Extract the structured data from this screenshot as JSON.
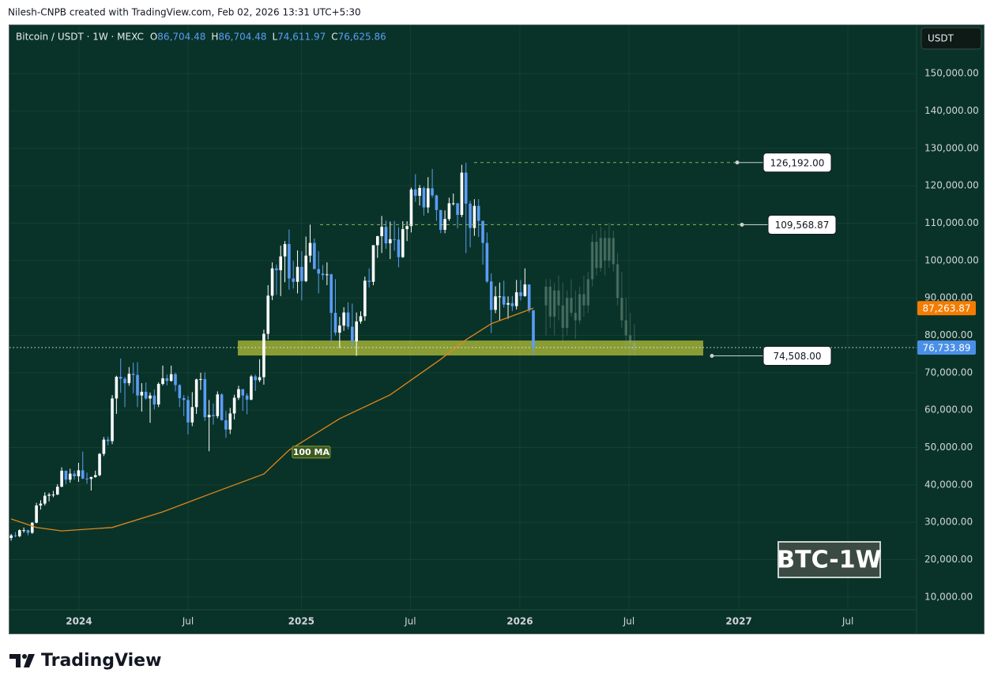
{
  "credit": "Nilesh-CNPB created with TradingView.com, Feb 02, 2026 13:31 UTC+5:30",
  "brand": "TradingView",
  "chart_data": {
    "type": "candlestick",
    "symbol": "Bitcoin / USDT · 1W · MEXC",
    "ohlc_header": [
      {
        "key": "O",
        "label": "86,704.48"
      },
      {
        "key": "H",
        "label": "86,704.48"
      },
      {
        "key": "L",
        "label": "74,611.97"
      },
      {
        "key": "C",
        "label": "76,625.86"
      }
    ],
    "currency": "USDT",
    "watermark": "BTC-1W",
    "up_color": "#ffffff",
    "down_color": "#5b9cf6",
    "candles": [
      [
        25800,
        26900,
        25100,
        26500
      ],
      [
        26500,
        27400,
        26000,
        26300
      ],
      [
        26300,
        28100,
        26000,
        27900
      ],
      [
        27900,
        28600,
        27200,
        27900
      ],
      [
        27900,
        28000,
        26500,
        27200
      ],
      [
        27200,
        30000,
        26900,
        29900
      ],
      [
        29900,
        35200,
        29700,
        34500
      ],
      [
        34500,
        35900,
        33400,
        35000
      ],
      [
        35000,
        38000,
        34500,
        37100
      ],
      [
        37100,
        37900,
        35600,
        37400
      ],
      [
        37400,
        38400,
        36700,
        37400
      ],
      [
        37400,
        40200,
        37300,
        39500
      ],
      [
        39500,
        44700,
        39400,
        43800
      ],
      [
        43800,
        43800,
        40200,
        41400
      ],
      [
        41400,
        44300,
        40600,
        43000
      ],
      [
        43000,
        43800,
        41400,
        42300
      ],
      [
        42300,
        45900,
        40800,
        43900
      ],
      [
        43900,
        48900,
        41500,
        41700
      ],
      [
        41700,
        43300,
        40300,
        41600
      ],
      [
        41600,
        42200,
        38500,
        42100
      ],
      [
        42100,
        43800,
        41900,
        42600
      ],
      [
        42600,
        48500,
        42300,
        48300
      ],
      [
        48300,
        52800,
        47700,
        52100
      ],
      [
        52100,
        52900,
        50600,
        51700
      ],
      [
        51700,
        64000,
        50900,
        63100
      ],
      [
        63100,
        69200,
        59000,
        68900
      ],
      [
        68900,
        73800,
        64600,
        68400
      ],
      [
        68400,
        68900,
        60800,
        67200
      ],
      [
        67200,
        71500,
        66500,
        69700
      ],
      [
        69700,
        72700,
        64500,
        69400
      ],
      [
        69400,
        72800,
        60800,
        63900
      ],
      [
        63900,
        67200,
        59600,
        64900
      ],
      [
        64900,
        67400,
        62800,
        63100
      ],
      [
        63100,
        64700,
        56600,
        63900
      ],
      [
        63900,
        65500,
        60200,
        61500
      ],
      [
        61500,
        67400,
        60800,
        67000
      ],
      [
        67000,
        71900,
        66600,
        68500
      ],
      [
        68500,
        69500,
        66600,
        67800
      ],
      [
        67800,
        71900,
        67600,
        69600
      ],
      [
        69600,
        70000,
        65000,
        66700
      ],
      [
        66700,
        66900,
        60800,
        63200
      ],
      [
        63200,
        64000,
        58400,
        62700
      ],
      [
        62700,
        63800,
        53500,
        56700
      ],
      [
        56700,
        64800,
        55700,
        60800
      ],
      [
        60800,
        68400,
        59000,
        68200
      ],
      [
        68200,
        70000,
        65400,
        68300
      ],
      [
        68300,
        70100,
        57100,
        58100
      ],
      [
        58100,
        62700,
        49000,
        58700
      ],
      [
        58700,
        61800,
        56100,
        58400
      ],
      [
        58400,
        65000,
        57800,
        64200
      ],
      [
        64200,
        64500,
        57200,
        57300
      ],
      [
        57300,
        59800,
        52600,
        54800
      ],
      [
        54800,
        60600,
        53600,
        59100
      ],
      [
        59100,
        64100,
        57500,
        63300
      ],
      [
        63300,
        66500,
        62700,
        65600
      ],
      [
        65600,
        65600,
        59800,
        63900
      ],
      [
        63900,
        64500,
        58900,
        62800
      ],
      [
        62800,
        69400,
        62600,
        69000
      ],
      [
        69000,
        69500,
        65100,
        68000
      ],
      [
        68000,
        73600,
        67500,
        68800
      ],
      [
        68800,
        81500,
        66800,
        80400
      ],
      [
        80400,
        93400,
        78900,
        90600
      ],
      [
        90600,
        99500,
        89400,
        97900
      ],
      [
        97900,
        98900,
        90800,
        97400
      ],
      [
        97400,
        104000,
        90500,
        101100
      ],
      [
        101100,
        105200,
        94200,
        104400
      ],
      [
        104400,
        108300,
        92200,
        95200
      ],
      [
        95200,
        99900,
        92500,
        94300
      ],
      [
        94300,
        102700,
        91200,
        98300
      ],
      [
        98300,
        102500,
        89300,
        94500
      ],
      [
        94500,
        106400,
        94200,
        101300
      ],
      [
        101300,
        109600,
        99500,
        104700
      ],
      [
        104700,
        105900,
        97800,
        97700
      ],
      [
        97700,
        102500,
        91200,
        96500
      ],
      [
        96500,
        98800,
        94800,
        96100
      ],
      [
        96100,
        99500,
        93400,
        96300
      ],
      [
        96300,
        96500,
        78200,
        86000
      ],
      [
        86000,
        95000,
        80000,
        80700
      ],
      [
        80700,
        84900,
        76600,
        82600
      ],
      [
        82600,
        87500,
        81200,
        86100
      ],
      [
        86100,
        88800,
        81600,
        82300
      ],
      [
        82300,
        88500,
        77100,
        78400
      ],
      [
        78400,
        86100,
        74500,
        83700
      ],
      [
        83700,
        86400,
        83100,
        85100
      ],
      [
        85100,
        95700,
        83900,
        94600
      ],
      [
        94600,
        97900,
        92800,
        94300
      ],
      [
        94300,
        104100,
        93400,
        104100
      ],
      [
        104100,
        106600,
        100700,
        106500
      ],
      [
        106500,
        111900,
        102000,
        109000
      ],
      [
        109000,
        110700,
        103100,
        104600
      ],
      [
        104600,
        110400,
        100400,
        105700
      ],
      [
        105700,
        110600,
        102600,
        105600
      ],
      [
        105600,
        108900,
        98200,
        100900
      ],
      [
        100900,
        110500,
        100700,
        108400
      ],
      [
        108400,
        110500,
        105200,
        109200
      ],
      [
        109200,
        119500,
        107500,
        119000
      ],
      [
        119000,
        123100,
        115700,
        117300
      ],
      [
        117300,
        120200,
        114700,
        119400
      ],
      [
        119400,
        119800,
        112000,
        114200
      ],
      [
        114200,
        122300,
        112700,
        119300
      ],
      [
        119300,
        124500,
        116800,
        117400
      ],
      [
        117400,
        117600,
        110600,
        113500
      ],
      [
        113500,
        113500,
        107300,
        108200
      ],
      [
        108200,
        113400,
        107300,
        111100
      ],
      [
        111100,
        116800,
        110600,
        115300
      ],
      [
        115300,
        117900,
        114700,
        115300
      ],
      [
        115300,
        115400,
        108600,
        112200
      ],
      [
        112200,
        125600,
        111600,
        123500
      ],
      [
        123500,
        126192,
        102000,
        115200
      ],
      [
        115200,
        116000,
        103500,
        108700
      ],
      [
        108700,
        116400,
        106600,
        114600
      ],
      [
        114600,
        116400,
        106300,
        110600
      ],
      [
        110600,
        110600,
        98900,
        104700
      ],
      [
        104700,
        107500,
        94000,
        94400
      ],
      [
        94400,
        96600,
        80600,
        86800
      ],
      [
        86800,
        93100,
        85900,
        90400
      ],
      [
        90400,
        94100,
        83800,
        90400
      ],
      [
        90400,
        94600,
        87400,
        88200
      ],
      [
        88200,
        90400,
        84400,
        88600
      ],
      [
        88600,
        90500,
        86500,
        87800
      ],
      [
        87800,
        94800,
        86900,
        91500
      ],
      [
        91500,
        94800,
        89300,
        90500
      ],
      [
        90500,
        97900,
        90300,
        93600
      ],
      [
        93600,
        93600,
        86100,
        86700
      ],
      [
        86704.48,
        86704.48,
        74611.97,
        76625.86
      ]
    ],
    "projection_start": 127,
    "projection_color": "#8fb0a0",
    "projection": [
      [
        88000,
        95000,
        80000,
        93000
      ],
      [
        93000,
        95000,
        82000,
        85000
      ],
      [
        85000,
        94000,
        80000,
        92000
      ],
      [
        92000,
        96000,
        84000,
        88000
      ],
      [
        88000,
        94000,
        78000,
        82000
      ],
      [
        82000,
        92000,
        80000,
        90000
      ],
      [
        90000,
        95000,
        85000,
        86000
      ],
      [
        86000,
        92000,
        79000,
        84000
      ],
      [
        84000,
        93000,
        83000,
        91000
      ],
      [
        91000,
        96000,
        85000,
        88000
      ],
      [
        88000,
        97000,
        86000,
        95000
      ],
      [
        95000,
        107000,
        93000,
        105000
      ],
      [
        105000,
        108000,
        96000,
        98000
      ],
      [
        98000,
        109000,
        97000,
        106000
      ],
      [
        106000,
        108000,
        96000,
        100000
      ],
      [
        100000,
        110000,
        98000,
        106000
      ],
      [
        106000,
        108000,
        97000,
        99000
      ],
      [
        99000,
        102000,
        88000,
        90000
      ],
      [
        90000,
        97000,
        82000,
        84000
      ],
      [
        84000,
        90000,
        76000,
        80000
      ],
      [
        80000,
        86000,
        74500,
        78000
      ],
      [
        78000,
        83000,
        74500,
        76000
      ]
    ],
    "series": [
      {
        "name": "100 MA",
        "color": "#e0861c",
        "x": [
          0,
          6,
          12,
          24,
          36,
          48,
          60,
          66,
          78,
          90,
          102,
          108,
          114,
          120,
          124
        ],
        "values": [
          30900,
          28600,
          27700,
          28600,
          32800,
          37900,
          42900,
          49300,
          57700,
          64100,
          73600,
          78800,
          83100,
          85600,
          87263.87
        ]
      }
    ],
    "levels": [
      {
        "value": 126192,
        "label": "126,192.00"
      },
      {
        "value": 109568.87,
        "label": "109,568.87"
      },
      {
        "value": 74508,
        "label": "74,508.00"
      }
    ],
    "zone": [
      74600,
      78600
    ],
    "zone_color": "#b5c23a",
    "price_labels": [
      {
        "value": 87263.87,
        "label": "87,263.87",
        "color": "#f57c00"
      },
      {
        "value": 76733.89,
        "label": "76,733.89",
        "color": "#4a8fe7"
      }
    ],
    "xlim": [
      -0.4,
      215
    ],
    "xticks": [
      {
        "value": 16.1,
        "label": "2024"
      },
      {
        "value": 42,
        "label": "Jul"
      },
      {
        "value": 68.9,
        "label": "2025"
      },
      {
        "value": 94.8,
        "label": "Jul"
      },
      {
        "value": 120.8,
        "label": "2026"
      },
      {
        "value": 146.7,
        "label": "Jul"
      },
      {
        "value": 172.8,
        "label": "2027"
      },
      {
        "value": 198.7,
        "label": "Jul"
      }
    ],
    "ylim": [
      6600,
      162900
    ],
    "yticks": [
      {
        "value": 10000,
        "label": "10,000.00"
      },
      {
        "value": 20000,
        "label": "20,000.00"
      },
      {
        "value": 30000,
        "label": "30,000.00"
      },
      {
        "value": 40000,
        "label": "40,000.00"
      },
      {
        "value": 50000,
        "label": "50,000.00"
      },
      {
        "value": 60000,
        "label": "60,000.00"
      },
      {
        "value": 70000,
        "label": "70,000.00"
      },
      {
        "value": 80000,
        "label": "80,000.00"
      },
      {
        "value": 90000,
        "label": "90,000.00"
      },
      {
        "value": 100000,
        "label": "100,000.00"
      },
      {
        "value": 110000,
        "label": "110,000.00"
      },
      {
        "value": 120000,
        "label": "120,000.00"
      },
      {
        "value": 130000,
        "label": "130,000.00"
      },
      {
        "value": 140000,
        "label": "140,000.00"
      },
      {
        "value": 150000,
        "label": "150,000.00"
      }
    ],
    "grid": true
  }
}
